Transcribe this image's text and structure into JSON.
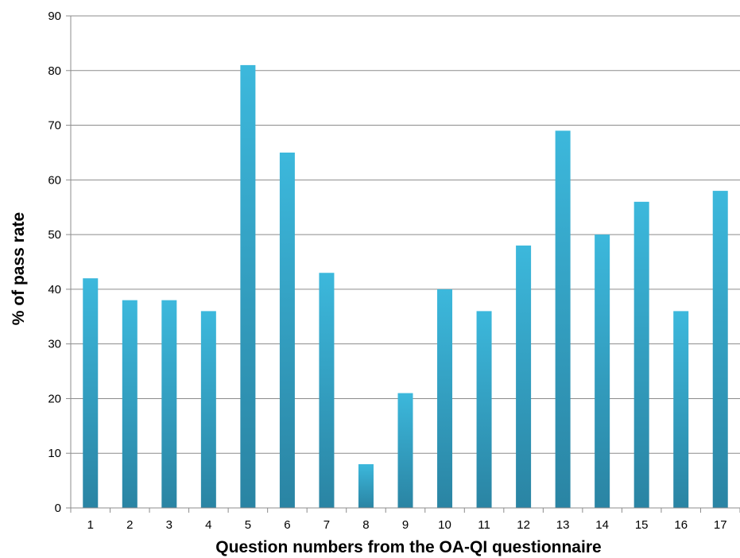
{
  "chart_data": {
    "type": "bar",
    "categories": [
      "1",
      "2",
      "3",
      "4",
      "5",
      "6",
      "7",
      "8",
      "9",
      "10",
      "11",
      "12",
      "13",
      "14",
      "15",
      "16",
      "17"
    ],
    "values": [
      42,
      38,
      38,
      36,
      81,
      65,
      43,
      8,
      21,
      40,
      36,
      48,
      69,
      50,
      56,
      36,
      58
    ],
    "xlabel": "Question numbers from the OA-QI questionnaire",
    "ylabel": "% of pass rate",
    "ylim": [
      0,
      90
    ],
    "yticks": [
      "0",
      "10",
      "20",
      "30",
      "40",
      "50",
      "60",
      "70",
      "80",
      "90"
    ],
    "grid": true,
    "legend": "none",
    "colors": {
      "bar_top": "#3cb8dc",
      "bar_bottom": "#2a84a3",
      "grid": "#8c8c8c"
    }
  }
}
